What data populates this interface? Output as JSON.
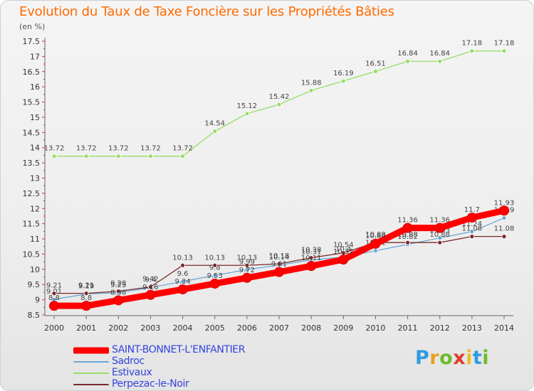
{
  "header": {
    "title": "Evolution du Taux de Taxe Foncière sur les Propriétés Bâties",
    "subtitle": "(en %)"
  },
  "logo": {
    "letters": [
      "P",
      "r",
      "o",
      "x",
      "i",
      "t",
      "i"
    ],
    "colors": [
      "#2f9be0",
      "#e8a020",
      "#6cbd2a",
      "#e23b2a",
      "#e8c020",
      "#2f9be0",
      "#6cbd2a"
    ]
  },
  "chart_data": {
    "type": "line",
    "title": "Evolution du Taux de Taxe Foncière sur les Propriétés Bâties",
    "ylabel": "(en %)",
    "xlabel": "",
    "x": [
      "2000",
      "2001",
      "2002",
      "2003",
      "2004",
      "2005",
      "2006",
      "2007",
      "2008",
      "2009",
      "2010",
      "2011",
      "2012",
      "2013",
      "2014"
    ],
    "ylim": [
      8.5,
      17.5
    ],
    "yticks": [
      "8.5",
      "9",
      "9.5",
      "10",
      "10.5",
      "11",
      "11.5",
      "12",
      "12.5",
      "13",
      "13.5",
      "14",
      "14.5",
      "15",
      "15.5",
      "16",
      "16.5",
      "17",
      "17.5"
    ],
    "grid": false,
    "legend_position": "bottom-left",
    "series": [
      {
        "name": "SAINT-BONNET-L'ENFANTIER",
        "color": "#ff0000",
        "style": "thick",
        "values": [
          8.8,
          8.8,
          8.98,
          9.16,
          9.34,
          9.53,
          9.72,
          9.91,
          10.11,
          10.32,
          10.84,
          11.36,
          11.36,
          11.7,
          11.93
        ],
        "labels": [
          "8.8",
          "8.8",
          "8.98",
          "9.16",
          "9.34",
          "9.53",
          "9.72",
          "9.91",
          "10.11",
          "10.32",
          "10.84",
          "11.36",
          "11.36",
          "11.7",
          "11.93"
        ]
      },
      {
        "name": "Sadroc",
        "color": "#6aa8d8",
        "style": "thin",
        "values": [
          9.01,
          9.19,
          9.23,
          9.4,
          9.6,
          9.8,
          9.99,
          10.14,
          10.31,
          10.4,
          10.61,
          10.82,
          11.03,
          11.24,
          11.69
        ],
        "labels": [
          "9.01",
          "9.19",
          "9.23",
          "9.4",
          "9.6",
          "9.8",
          "9.99",
          "10.14",
          "10.31",
          "10.4",
          "10.61",
          "10.82",
          "11.03",
          "11.24",
          "11.69"
        ]
      },
      {
        "name": "Estivaux",
        "color": "#99dd66",
        "style": "thin",
        "values": [
          13.72,
          13.72,
          13.72,
          13.72,
          13.72,
          14.54,
          15.12,
          15.42,
          15.88,
          16.19,
          16.51,
          16.84,
          16.84,
          17.18,
          17.18
        ],
        "labels": [
          "13.72",
          "13.72",
          "13.72",
          "13.72",
          "13.72",
          "14.54",
          "15.12",
          "15.42",
          "15.88",
          "16.19",
          "16.51",
          "16.84",
          "16.84",
          "17.18",
          "17.18"
        ]
      },
      {
        "name": "Perpezac-le-Noir",
        "color": "#7a2a2a",
        "style": "thin",
        "values": [
          9.21,
          9.21,
          9.28,
          9.42,
          10.13,
          10.13,
          10.13,
          10.18,
          10.38,
          10.54,
          10.88,
          10.88,
          10.88,
          11.08,
          11.08
        ],
        "labels": [
          "9.21",
          "9.21",
          "9.28",
          "9.42",
          "10.13",
          "10.13",
          "10.13",
          "10.18",
          "10.38",
          "10.54",
          "10.88",
          "10.88",
          "10.88",
          "11.08",
          "11.08"
        ]
      }
    ]
  }
}
